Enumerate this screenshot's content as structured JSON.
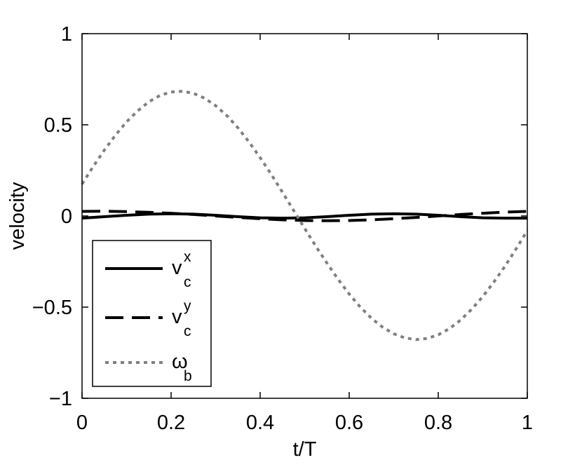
{
  "chart_data": {
    "type": "line",
    "title": "",
    "xlabel": "t/T",
    "ylabel": "velocity",
    "xlim": [
      0,
      1
    ],
    "ylim": [
      -1,
      1
    ],
    "xticks": [
      "0",
      "0.2",
      "0.4",
      "0.6",
      "0.8",
      "1"
    ],
    "yticks": [
      "−1",
      "−0.5",
      "0",
      "0.5",
      "1"
    ],
    "grid": false,
    "legend_position": "bottom-left",
    "series": [
      {
        "name": "v_c^x",
        "legend_main": "v",
        "legend_sub": "c",
        "legend_sup": "x",
        "color": "#000000",
        "style": "solid",
        "x": [
          0,
          0.05,
          0.1,
          0.15,
          0.2,
          0.25,
          0.3,
          0.35,
          0.4,
          0.45,
          0.5,
          0.55,
          0.6,
          0.65,
          0.7,
          0.75,
          0.8,
          0.85,
          0.9,
          0.95,
          1.0
        ],
        "y": [
          -0.012,
          -0.004,
          0.004,
          0.01,
          0.012,
          0.01,
          0.004,
          -0.004,
          -0.01,
          -0.012,
          -0.01,
          -0.004,
          0.004,
          0.01,
          0.012,
          0.01,
          0.004,
          -0.004,
          -0.01,
          -0.012,
          -0.012
        ]
      },
      {
        "name": "v_c^y",
        "legend_main": "v",
        "legend_sub": "c",
        "legend_sup": "y",
        "color": "#000000",
        "style": "dashed",
        "x": [
          0,
          0.05,
          0.1,
          0.15,
          0.2,
          0.25,
          0.3,
          0.35,
          0.4,
          0.45,
          0.5,
          0.55,
          0.6,
          0.65,
          0.7,
          0.75,
          0.8,
          0.85,
          0.9,
          0.95,
          1.0
        ],
        "y": [
          0.025,
          0.026,
          0.024,
          0.02,
          0.015,
          0.008,
          0.0,
          -0.008,
          -0.015,
          -0.021,
          -0.025,
          -0.026,
          -0.025,
          -0.021,
          -0.015,
          -0.008,
          0.0,
          0.008,
          0.015,
          0.021,
          0.025
        ]
      },
      {
        "name": "ω_b",
        "legend_main": "ω",
        "legend_sub": "b",
        "legend_sup": "",
        "color": "#808080",
        "style": "dotted",
        "x": [
          0,
          0.025,
          0.05,
          0.075,
          0.1,
          0.125,
          0.15,
          0.175,
          0.2,
          0.225,
          0.25,
          0.275,
          0.3,
          0.325,
          0.35,
          0.375,
          0.4,
          0.425,
          0.45,
          0.475,
          0.5,
          0.525,
          0.55,
          0.575,
          0.6,
          0.625,
          0.65,
          0.675,
          0.7,
          0.725,
          0.75,
          0.775,
          0.8,
          0.825,
          0.85,
          0.875,
          0.9,
          0.925,
          0.95,
          0.975,
          1.0
        ],
        "y": [
          0.175,
          0.271,
          0.361,
          0.443,
          0.516,
          0.577,
          0.626,
          0.661,
          0.68,
          0.684,
          0.673,
          0.646,
          0.605,
          0.551,
          0.484,
          0.406,
          0.32,
          0.228,
          0.13,
          0.031,
          -0.068,
          -0.166,
          -0.259,
          -0.347,
          -0.428,
          -0.5,
          -0.561,
          -0.61,
          -0.646,
          -0.669,
          -0.678,
          -0.672,
          -0.652,
          -0.618,
          -0.571,
          -0.512,
          -0.442,
          -0.362,
          -0.275,
          -0.18,
          -0.08
        ]
      }
    ]
  }
}
